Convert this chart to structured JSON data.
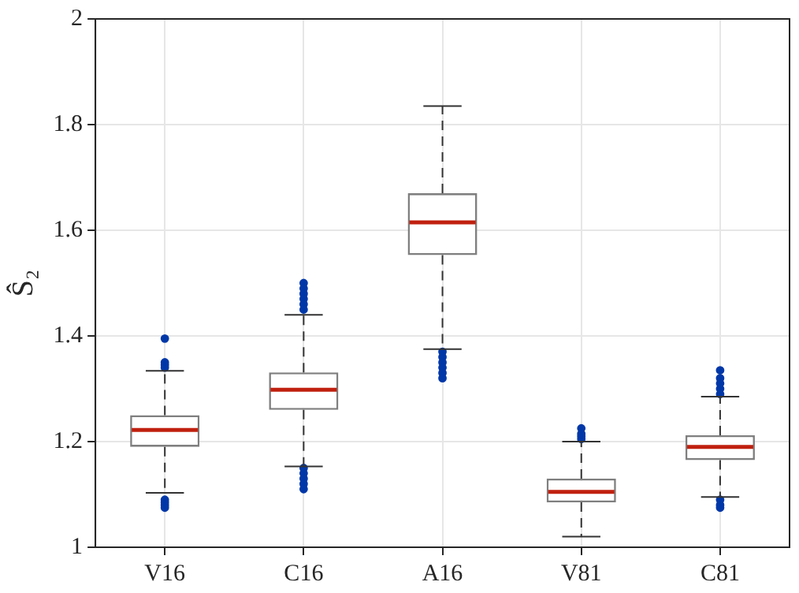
{
  "chart_data": {
    "type": "box",
    "ylabel": "Ŝ₂",
    "categories": [
      "V16",
      "C16",
      "A16",
      "V81",
      "C81"
    ],
    "boxes": [
      {
        "low": 1.103,
        "q1": 1.19,
        "median": 1.222,
        "q3": 1.25,
        "high": 1.334,
        "outliers": [
          1.395,
          1.35,
          1.345,
          1.34,
          1.09,
          1.085,
          1.08,
          1.075
        ]
      },
      {
        "low": 1.153,
        "q1": 1.26,
        "median": 1.298,
        "q3": 1.331,
        "high": 1.44,
        "outliers": [
          1.5,
          1.49,
          1.48,
          1.47,
          1.46,
          1.45,
          1.15,
          1.14,
          1.13,
          1.12,
          1.11
        ]
      },
      {
        "low": 1.375,
        "q1": 1.553,
        "median": 1.615,
        "q3": 1.67,
        "high": 1.835,
        "outliers": [
          1.37,
          1.36,
          1.35,
          1.34,
          1.33,
          1.32
        ]
      },
      {
        "low": 1.02,
        "q1": 1.085,
        "median": 1.105,
        "q3": 1.13,
        "high": 1.2,
        "outliers": [
          1.205,
          1.21,
          1.215,
          1.225
        ]
      },
      {
        "low": 1.095,
        "q1": 1.165,
        "median": 1.19,
        "q3": 1.212,
        "high": 1.285,
        "outliers": [
          1.29,
          1.3,
          1.31,
          1.32,
          1.335,
          1.09,
          1.08,
          1.075
        ]
      }
    ],
    "ylim": [
      1,
      2
    ],
    "yticks": [
      1,
      1.2,
      1.4,
      1.6,
      1.8,
      2
    ],
    "grid": true,
    "marker": "circle"
  }
}
